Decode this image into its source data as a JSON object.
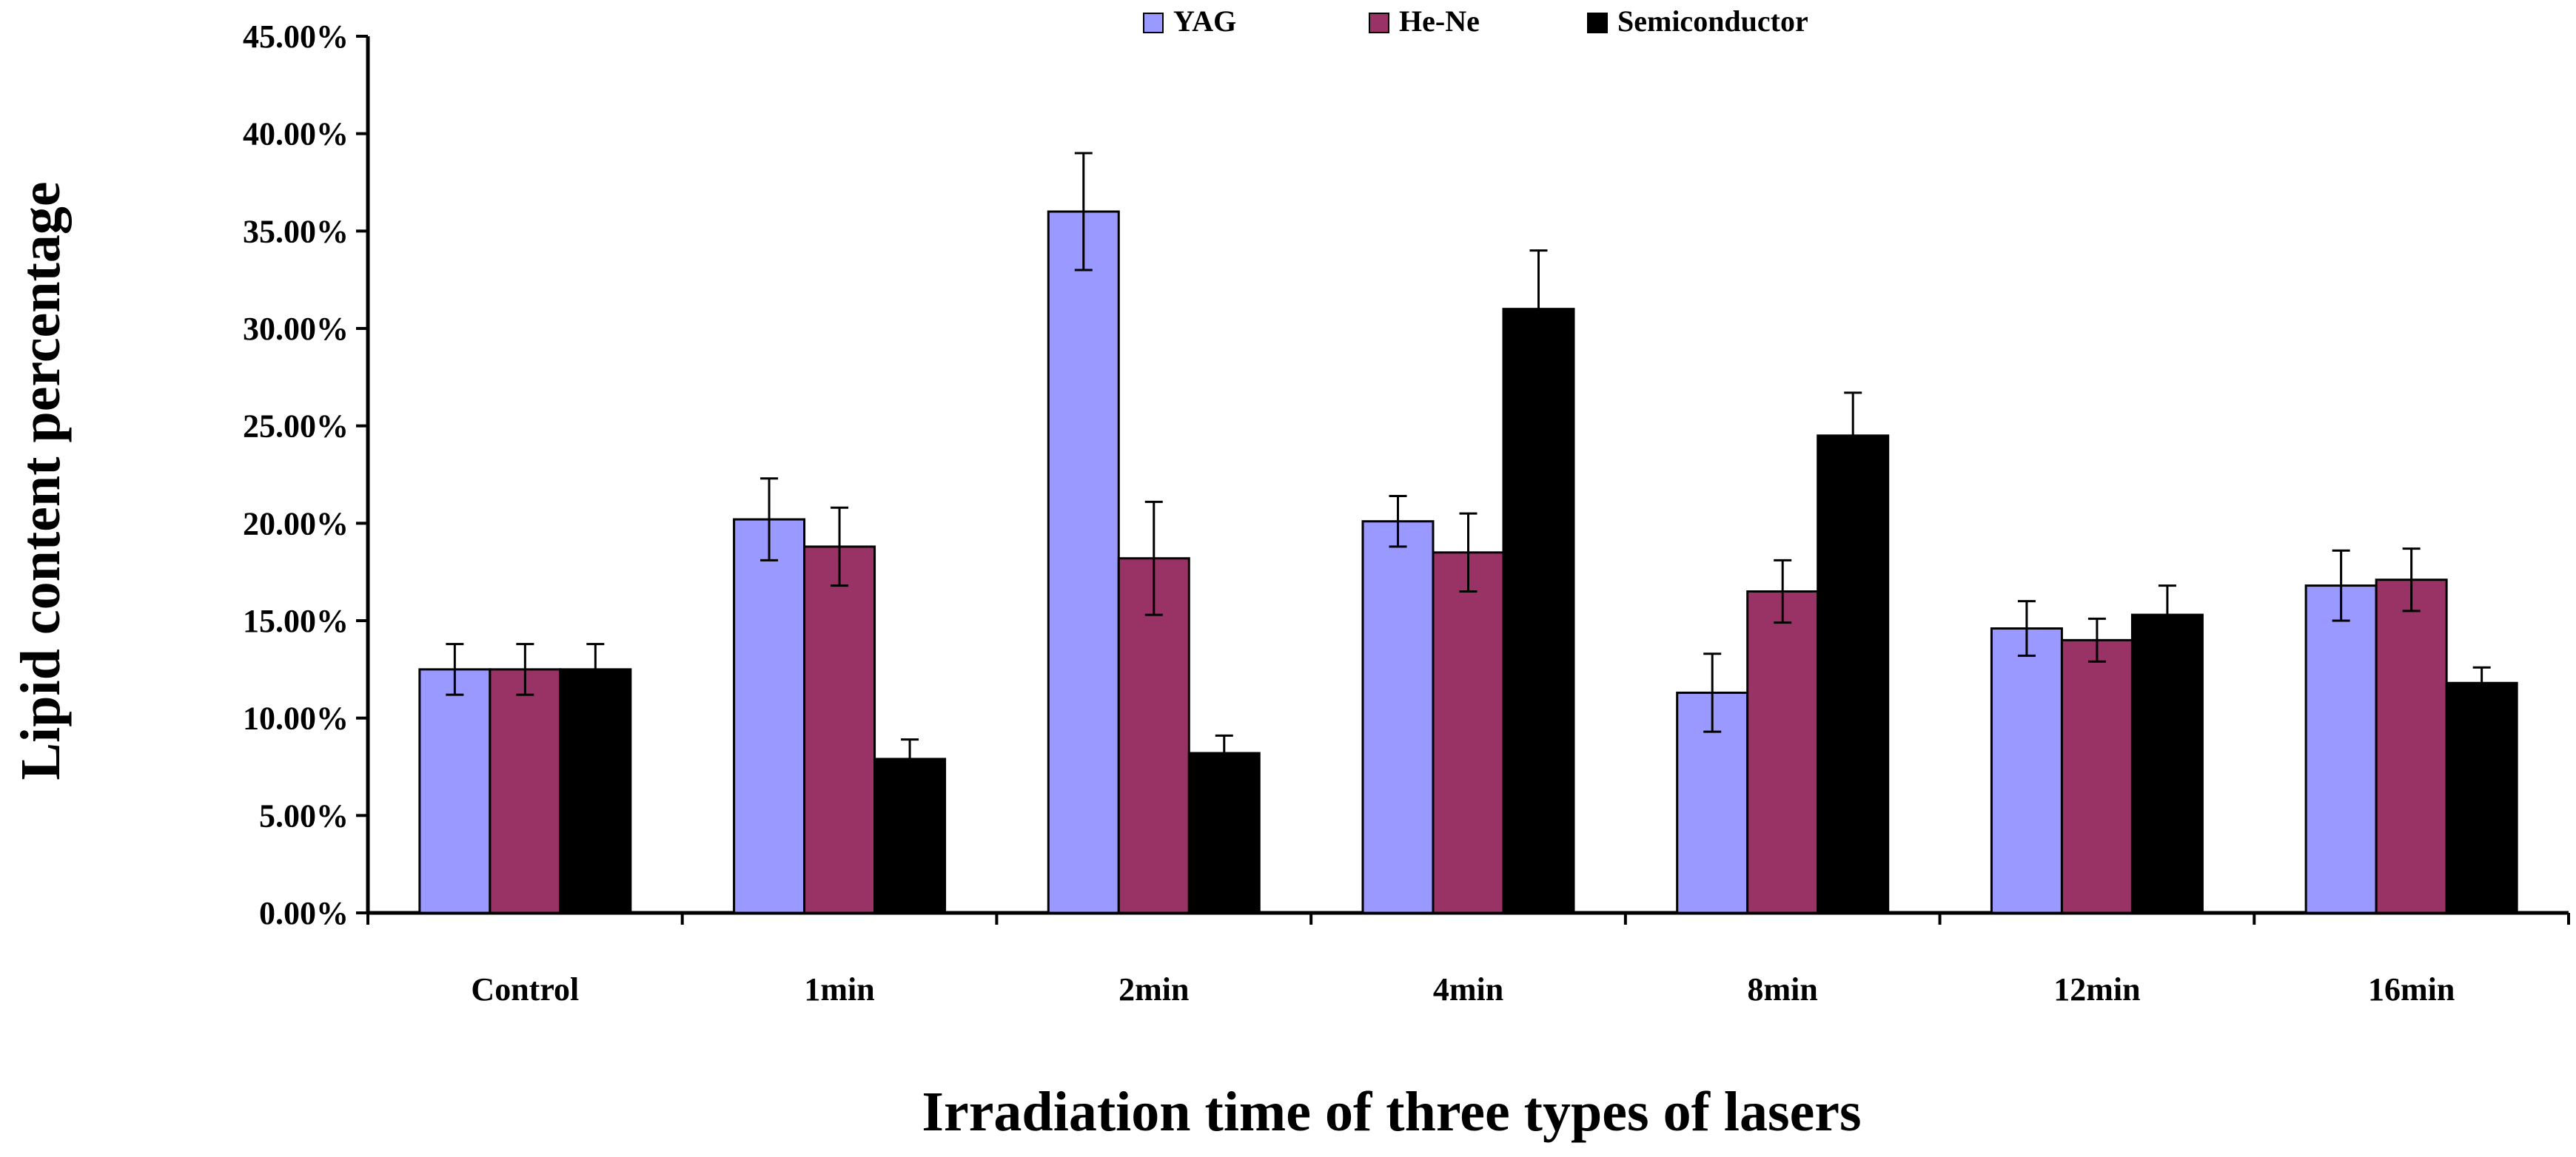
{
  "chart_data": {
    "type": "bar",
    "title": "",
    "xlabel": "Irradiation time of three types of lasers",
    "ylabel": "Lipid content percentage",
    "categories": [
      "Control",
      "1min",
      "2min",
      "4min",
      "8min",
      "12min",
      "16min"
    ],
    "series": [
      {
        "name": "YAG",
        "color": "#9999ff",
        "values": [
          12.5,
          20.2,
          36.0,
          20.1,
          11.3,
          14.6,
          16.8
        ],
        "errors": [
          1.3,
          2.1,
          3.0,
          1.3,
          2.0,
          1.4,
          1.8
        ]
      },
      {
        "name": "He-Ne",
        "color": "#993366",
        "values": [
          12.5,
          18.8,
          18.2,
          18.5,
          16.5,
          14.0,
          17.1
        ],
        "errors": [
          1.3,
          2.0,
          2.9,
          2.0,
          1.6,
          1.1,
          1.6
        ]
      },
      {
        "name": "Semiconductor",
        "color": "#000000",
        "values": [
          12.5,
          7.9,
          8.2,
          31.0,
          24.5,
          15.3,
          11.8
        ],
        "errors": [
          1.3,
          1.0,
          0.9,
          3.0,
          2.2,
          1.5,
          0.8
        ]
      }
    ],
    "ylim": [
      0,
      45
    ],
    "yticks": [
      "0.00%",
      "5.00%",
      "10.00%",
      "15.00%",
      "20.00%",
      "25.00%",
      "30.00%",
      "35.00%",
      "40.00%",
      "45.00%"
    ],
    "ytick_values": [
      0,
      5,
      10,
      15,
      20,
      25,
      30,
      35,
      40,
      45
    ],
    "grid": false,
    "legend_position": "top"
  }
}
